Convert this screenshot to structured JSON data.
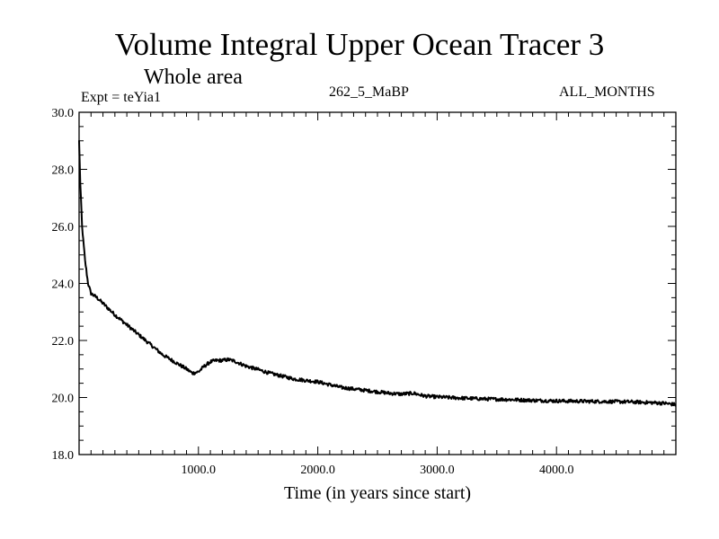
{
  "chart_data": {
    "type": "line",
    "title": "Volume Integral Upper Ocean Tracer 3",
    "subtitle": "Whole area",
    "annotations": {
      "experiment": "Expt = teYia1",
      "run": "262_5_MaBP",
      "months": "ALL_MONTHS"
    },
    "xlabel": "Time (in years since start)",
    "ylabel": "",
    "xlim": [
      0,
      5000
    ],
    "ylim": [
      18.0,
      30.0
    ],
    "x_ticks": [
      1000.0,
      2000.0,
      3000.0,
      4000.0
    ],
    "x_tick_labels": [
      "1000.0",
      "2000.0",
      "3000.0",
      "4000.0"
    ],
    "y_ticks": [
      18.0,
      20.0,
      22.0,
      24.0,
      26.0,
      28.0,
      30.0
    ],
    "y_tick_labels": [
      "18.0",
      "20.0",
      "22.0",
      "24.0",
      "26.0",
      "28.0",
      "30.0"
    ],
    "series": [
      {
        "name": "Tracer 3",
        "x": [
          0,
          10,
          25,
          50,
          75,
          100,
          150,
          200,
          300,
          400,
          500,
          600,
          700,
          800,
          900,
          950,
          1000,
          1050,
          1100,
          1150,
          1200,
          1250,
          1300,
          1400,
          1500,
          1600,
          1700,
          1800,
          1900,
          2000,
          2100,
          2200,
          2300,
          2400,
          2500,
          2600,
          2700,
          2800,
          2850,
          2900,
          3000,
          3200,
          3400,
          3600,
          3800,
          4000,
          4200,
          4400,
          4600,
          4800,
          4900,
          5000
        ],
        "values": [
          29.0,
          27.5,
          26.0,
          24.8,
          24.0,
          23.65,
          23.5,
          23.3,
          22.9,
          22.55,
          22.2,
          21.85,
          21.5,
          21.25,
          21.0,
          20.85,
          20.9,
          21.1,
          21.25,
          21.3,
          21.3,
          21.33,
          21.28,
          21.1,
          20.98,
          20.85,
          20.75,
          20.65,
          20.6,
          20.55,
          20.45,
          20.35,
          20.3,
          20.25,
          20.2,
          20.15,
          20.12,
          20.15,
          20.1,
          20.05,
          20.02,
          19.98,
          19.95,
          19.93,
          19.9,
          19.88,
          19.87,
          19.86,
          19.85,
          19.82,
          19.8,
          19.75
        ]
      }
    ]
  }
}
